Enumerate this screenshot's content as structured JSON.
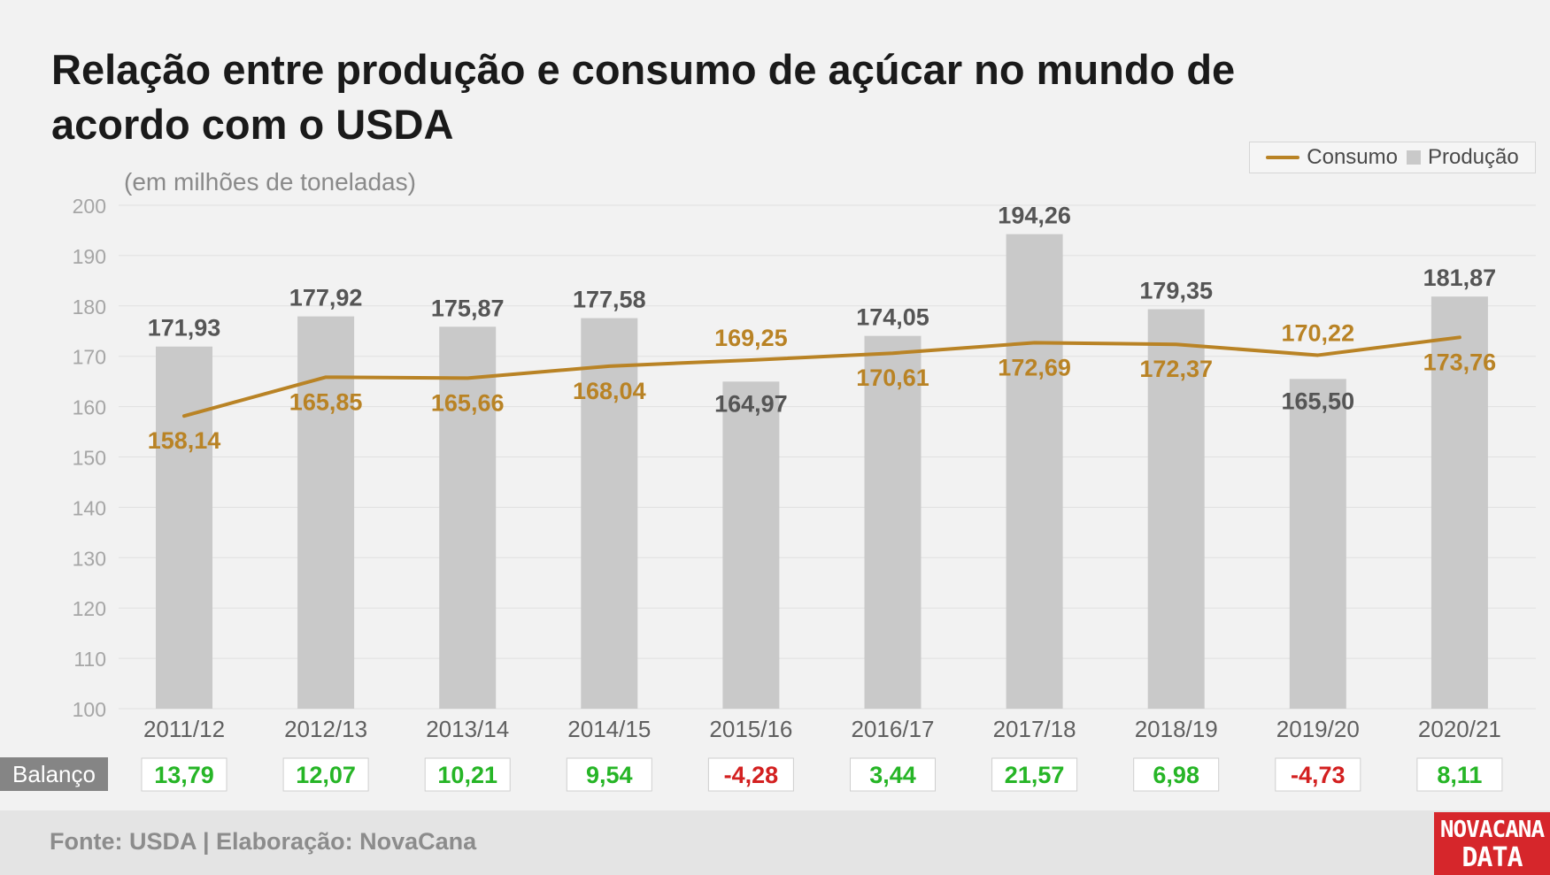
{
  "title": "Relação entre produção e consumo de açúcar no mundo de acordo com o USDA",
  "subtitle": "(em milhões de toneladas)",
  "legend": {
    "line_label": "Consumo",
    "bar_label": "Produção"
  },
  "balance_label": "Balanço",
  "source": "Fonte: USDA | Elaboração: NovaCana",
  "logo": {
    "line1": "NOVACANA",
    "line2": "DATA"
  },
  "colors": {
    "bar": "#c9c9c9",
    "line": "#b98325",
    "bar_label": "#555555",
    "positive": "#26b526",
    "negative": "#d32020",
    "grid": "#e0e0e0",
    "tick": "#a6a6a6"
  },
  "chart_data": {
    "type": "bar",
    "categories": [
      "2011/12",
      "2012/13",
      "2013/14",
      "2014/15",
      "2015/16",
      "2016/17",
      "2017/18",
      "2018/19",
      "2019/20",
      "2020/21"
    ],
    "series": [
      {
        "name": "Produção",
        "type": "bar",
        "values": [
          171.93,
          177.92,
          175.87,
          177.58,
          164.97,
          174.05,
          194.26,
          179.35,
          165.5,
          181.87
        ],
        "labels": [
          "171,93",
          "177,92",
          "175,87",
          "177,58",
          "164,97",
          "174,05",
          "194,26",
          "179,35",
          "165,50",
          "181,87"
        ]
      },
      {
        "name": "Consumo",
        "type": "line",
        "values": [
          158.14,
          165.85,
          165.66,
          168.04,
          169.25,
          170.61,
          172.69,
          172.37,
          170.22,
          173.76
        ],
        "labels": [
          "158,14",
          "165,85",
          "165,66",
          "168,04",
          "169,25",
          "170,61",
          "172,69",
          "172,37",
          "170,22",
          "173,76"
        ]
      }
    ],
    "balance": {
      "values": [
        13.79,
        12.07,
        10.21,
        9.54,
        -4.28,
        3.44,
        21.57,
        6.98,
        -4.73,
        8.11
      ],
      "labels": [
        "13,79",
        "12,07",
        "10,21",
        "9,54",
        "-4,28",
        "3,44",
        "21,57",
        "6,98",
        "-4,73",
        "8,11"
      ]
    },
    "ylim": [
      100,
      200
    ],
    "yticks": [
      100,
      110,
      120,
      130,
      140,
      150,
      160,
      170,
      180,
      190,
      200
    ],
    "grid": true,
    "legend_position": "top-right"
  }
}
